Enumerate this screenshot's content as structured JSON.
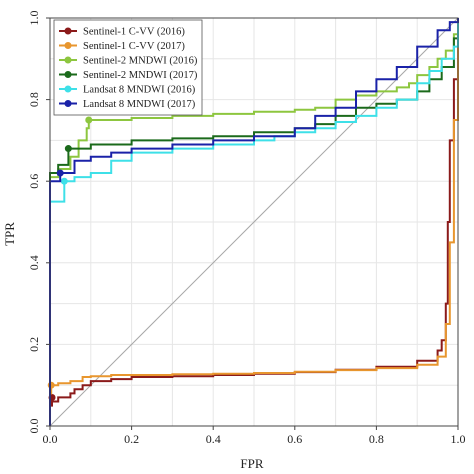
{
  "chart_data": {
    "type": "line",
    "title": "",
    "xlabel": "FPR",
    "ylabel": "TPR",
    "xlim": [
      0,
      1
    ],
    "ylim": [
      0,
      1
    ],
    "grid": true,
    "legend_position": "top-left",
    "x_ticks": [
      "0.0",
      "0.2",
      "0.4",
      "0.6",
      "0.8",
      "1.0"
    ],
    "y_ticks": [
      "0.0",
      "0.2",
      "0.4",
      "0.6",
      "0.8",
      "1.0"
    ],
    "diagonal": true,
    "series": [
      {
        "name": "Sentinel-1 C-VV (2016)",
        "color": "#8b1a1a",
        "marker": [
          0.005,
          0.07
        ],
        "points": [
          [
            0,
            0
          ],
          [
            0,
            0.05
          ],
          [
            0.005,
            0.06
          ],
          [
            0.02,
            0.07
          ],
          [
            0.05,
            0.08
          ],
          [
            0.06,
            0.09
          ],
          [
            0.08,
            0.1
          ],
          [
            0.1,
            0.11
          ],
          [
            0.15,
            0.115
          ],
          [
            0.2,
            0.12
          ],
          [
            0.3,
            0.122
          ],
          [
            0.4,
            0.125
          ],
          [
            0.5,
            0.128
          ],
          [
            0.6,
            0.132
          ],
          [
            0.7,
            0.138
          ],
          [
            0.8,
            0.145
          ],
          [
            0.9,
            0.16
          ],
          [
            0.95,
            0.185
          ],
          [
            0.96,
            0.21
          ],
          [
            0.97,
            0.3
          ],
          [
            0.975,
            0.5
          ],
          [
            0.98,
            0.7
          ],
          [
            0.99,
            0.85
          ],
          [
            1.0,
            1.0
          ]
        ]
      },
      {
        "name": "Sentinel-1 C-VV (2017)",
        "color": "#e8962e",
        "marker": [
          0.003,
          0.1
        ],
        "points": [
          [
            0,
            0
          ],
          [
            0,
            0.08
          ],
          [
            0.003,
            0.1
          ],
          [
            0.02,
            0.105
          ],
          [
            0.05,
            0.11
          ],
          [
            0.08,
            0.12
          ],
          [
            0.1,
            0.122
          ],
          [
            0.15,
            0.125
          ],
          [
            0.2,
            0.125
          ],
          [
            0.3,
            0.127
          ],
          [
            0.4,
            0.128
          ],
          [
            0.5,
            0.13
          ],
          [
            0.6,
            0.133
          ],
          [
            0.7,
            0.137
          ],
          [
            0.8,
            0.142
          ],
          [
            0.9,
            0.15
          ],
          [
            0.95,
            0.17
          ],
          [
            0.97,
            0.25
          ],
          [
            0.98,
            0.45
          ],
          [
            0.99,
            0.75
          ],
          [
            1.0,
            1.0
          ]
        ]
      },
      {
        "name": "Sentinel-2 MNDWI (2016)",
        "color": "#8dc63f",
        "marker": [
          0.095,
          0.75
        ],
        "points": [
          [
            0,
            0
          ],
          [
            0,
            0.61
          ],
          [
            0.02,
            0.63
          ],
          [
            0.05,
            0.66
          ],
          [
            0.07,
            0.7
          ],
          [
            0.09,
            0.73
          ],
          [
            0.095,
            0.75
          ],
          [
            0.2,
            0.755
          ],
          [
            0.3,
            0.76
          ],
          [
            0.4,
            0.765
          ],
          [
            0.5,
            0.77
          ],
          [
            0.6,
            0.775
          ],
          [
            0.65,
            0.78
          ],
          [
            0.7,
            0.8
          ],
          [
            0.75,
            0.81
          ],
          [
            0.8,
            0.82
          ],
          [
            0.85,
            0.83
          ],
          [
            0.88,
            0.84
          ],
          [
            0.9,
            0.86
          ],
          [
            0.93,
            0.88
          ],
          [
            0.95,
            0.9
          ],
          [
            0.97,
            0.92
          ],
          [
            0.99,
            0.96
          ],
          [
            1.0,
            1.0
          ]
        ]
      },
      {
        "name": "Sentinel-2 MNDWI (2017)",
        "color": "#1b6a1b",
        "marker": [
          0.045,
          0.68
        ],
        "points": [
          [
            0,
            0
          ],
          [
            0,
            0.62
          ],
          [
            0.02,
            0.64
          ],
          [
            0.045,
            0.68
          ],
          [
            0.1,
            0.69
          ],
          [
            0.2,
            0.7
          ],
          [
            0.3,
            0.705
          ],
          [
            0.4,
            0.71
          ],
          [
            0.5,
            0.72
          ],
          [
            0.6,
            0.73
          ],
          [
            0.65,
            0.74
          ],
          [
            0.7,
            0.76
          ],
          [
            0.75,
            0.78
          ],
          [
            0.8,
            0.79
          ],
          [
            0.85,
            0.8
          ],
          [
            0.9,
            0.82
          ],
          [
            0.93,
            0.85
          ],
          [
            0.96,
            0.88
          ],
          [
            0.99,
            0.95
          ],
          [
            1.0,
            1.0
          ]
        ]
      },
      {
        "name": "Landsat 8 MNDWI (2016)",
        "color": "#3ee0e8",
        "marker": [
          0.035,
          0.6
        ],
        "points": [
          [
            0,
            0
          ],
          [
            0,
            0.55
          ],
          [
            0.035,
            0.6
          ],
          [
            0.06,
            0.61
          ],
          [
            0.1,
            0.62
          ],
          [
            0.15,
            0.65
          ],
          [
            0.2,
            0.67
          ],
          [
            0.3,
            0.68
          ],
          [
            0.4,
            0.69
          ],
          [
            0.5,
            0.7
          ],
          [
            0.55,
            0.71
          ],
          [
            0.6,
            0.72
          ],
          [
            0.65,
            0.73
          ],
          [
            0.7,
            0.745
          ],
          [
            0.75,
            0.76
          ],
          [
            0.8,
            0.78
          ],
          [
            0.85,
            0.8
          ],
          [
            0.9,
            0.84
          ],
          [
            0.93,
            0.87
          ],
          [
            0.96,
            0.9
          ],
          [
            0.99,
            0.93
          ],
          [
            1.0,
            1.0
          ]
        ]
      },
      {
        "name": "Landsat 8 MNDWI (2017)",
        "color": "#1a22a8",
        "marker": [
          0.025,
          0.62
        ],
        "points": [
          [
            0,
            0
          ],
          [
            0,
            0.6
          ],
          [
            0.025,
            0.62
          ],
          [
            0.06,
            0.65
          ],
          [
            0.1,
            0.66
          ],
          [
            0.15,
            0.67
          ],
          [
            0.2,
            0.68
          ],
          [
            0.3,
            0.69
          ],
          [
            0.4,
            0.7
          ],
          [
            0.5,
            0.71
          ],
          [
            0.6,
            0.73
          ],
          [
            0.65,
            0.76
          ],
          [
            0.7,
            0.78
          ],
          [
            0.75,
            0.82
          ],
          [
            0.8,
            0.85
          ],
          [
            0.85,
            0.88
          ],
          [
            0.9,
            0.93
          ],
          [
            0.95,
            0.97
          ],
          [
            0.98,
            0.99
          ],
          [
            1.0,
            1.0
          ]
        ]
      }
    ]
  }
}
